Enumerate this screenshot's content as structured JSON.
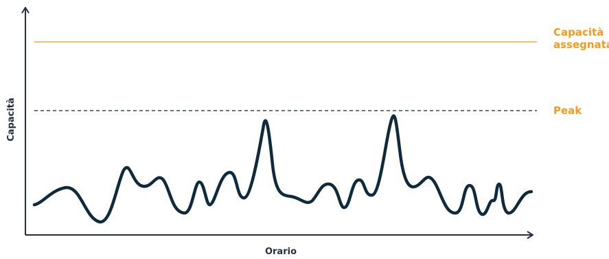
{
  "labels": {
    "allocated_capacity_line1": "Capacità",
    "allocated_capacity_line2": "assegnata",
    "peak": "Peak",
    "y_axis": "Capacità",
    "x_axis": "Orario"
  },
  "colors": {
    "axis": "#232f3e",
    "curve": "#0f2a3a",
    "allocated_line": "#f6a93b",
    "allocated_text": "#f39a1f",
    "peak_line": "#2d4a5a",
    "peak_text": "#f39a1f"
  }
}
